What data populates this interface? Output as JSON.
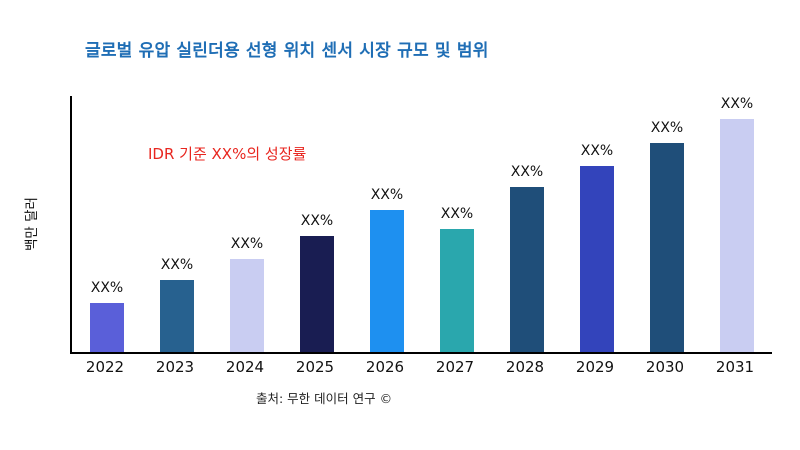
{
  "title": {
    "text": "글로벌 유압 실린더용 선형 위치 센서 시장 규모 및 범위",
    "color": "#1f6eb5"
  },
  "annotation": {
    "text": "IDR 기준 XX%의 성장률",
    "color": "#e8261f"
  },
  "footer": "출처: 무한 데이터 연구 ©",
  "chart_data": {
    "type": "bar",
    "title": "글로벌 유압 실린더용 선형 위치 센서 시장 규모 및 범위",
    "categories": [
      "2022",
      "2023",
      "2024",
      "2025",
      "2026",
      "2027",
      "2028",
      "2029",
      "2030",
      "2031"
    ],
    "values": [
      21,
      31,
      40,
      50,
      61,
      53,
      71,
      80,
      90,
      100
    ],
    "bar_labels": [
      "XX%",
      "XX%",
      "XX%",
      "XX%",
      "XX%",
      "XX%",
      "XX%",
      "XX%",
      "XX%",
      "XX%"
    ],
    "bar_colors": [
      "#5a5fd9",
      "#27618f",
      "#c9cdf2",
      "#191d52",
      "#1e90f0",
      "#2aa7ad",
      "#1f4e79",
      "#3344bb",
      "#1f4e79",
      "#c9cdf2"
    ],
    "xlabel": "",
    "ylabel": "백만 달러",
    "ylim": [
      0,
      110
    ],
    "grid": false,
    "legend": "none",
    "annotation": "IDR 기준 XX%의 성장률",
    "source": "출처: 무한 데이터 연구 ©"
  }
}
